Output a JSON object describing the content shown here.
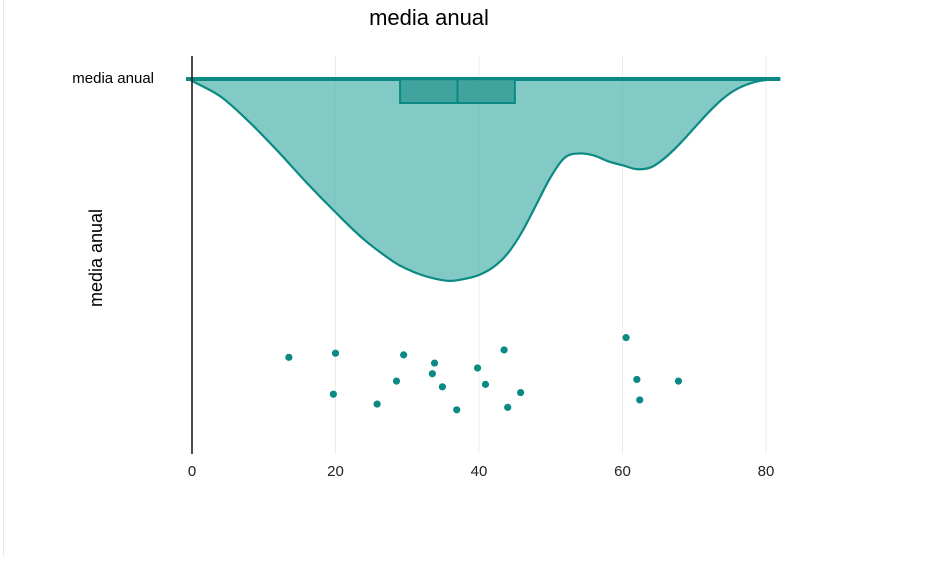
{
  "chart_data": {
    "type": "violin",
    "title": "media anual",
    "xlabel": "",
    "ylabel": "media anual",
    "category": "media anual",
    "xlim": [
      0,
      82
    ],
    "xticks": [
      0,
      20,
      40,
      60,
      80
    ],
    "grid": true,
    "colors": {
      "fill": "#5ab7b1",
      "stroke": "#0b8a84",
      "box": "#3a9f98",
      "point": "#0b8a84"
    },
    "box": {
      "whisker_low": 13.5,
      "q1": 29.0,
      "median": 37.0,
      "q3": 45.0,
      "whisker_high": 67.5
    },
    "density": {
      "x": [
        0,
        4,
        8,
        12,
        16,
        20,
        24,
        28,
        30,
        32,
        34,
        36,
        38,
        40,
        42,
        44,
        46,
        48,
        50,
        52,
        54,
        56,
        58,
        60,
        62,
        64,
        66,
        68,
        70,
        72,
        74,
        76,
        78,
        80,
        82
      ],
      "y": [
        0.01,
        0.09,
        0.22,
        0.37,
        0.53,
        0.68,
        0.82,
        0.93,
        0.97,
        1.0,
        1.02,
        1.03,
        1.02,
        1.0,
        0.96,
        0.89,
        0.78,
        0.64,
        0.5,
        0.4,
        0.38,
        0.39,
        0.42,
        0.44,
        0.46,
        0.45,
        0.4,
        0.33,
        0.25,
        0.17,
        0.1,
        0.05,
        0.02,
        0.005,
        0.0
      ]
    },
    "points": [
      {
        "x": 13.5,
        "jitter": 0.26
      },
      {
        "x": 20.0,
        "jitter": 0.21
      },
      {
        "x": 19.7,
        "jitter": 0.71
      },
      {
        "x": 25.8,
        "jitter": 0.83
      },
      {
        "x": 28.5,
        "jitter": 0.55
      },
      {
        "x": 29.5,
        "jitter": 0.23
      },
      {
        "x": 33.5,
        "jitter": 0.46
      },
      {
        "x": 33.8,
        "jitter": 0.33
      },
      {
        "x": 34.9,
        "jitter": 0.62
      },
      {
        "x": 36.9,
        "jitter": 0.9
      },
      {
        "x": 39.8,
        "jitter": 0.39
      },
      {
        "x": 40.9,
        "jitter": 0.59
      },
      {
        "x": 43.5,
        "jitter": 0.17
      },
      {
        "x": 44.0,
        "jitter": 0.87
      },
      {
        "x": 45.8,
        "jitter": 0.69
      },
      {
        "x": 60.5,
        "jitter": 0.02
      },
      {
        "x": 62.0,
        "jitter": 0.53
      },
      {
        "x": 62.4,
        "jitter": 0.78
      },
      {
        "x": 67.8,
        "jitter": 0.55
      }
    ]
  }
}
